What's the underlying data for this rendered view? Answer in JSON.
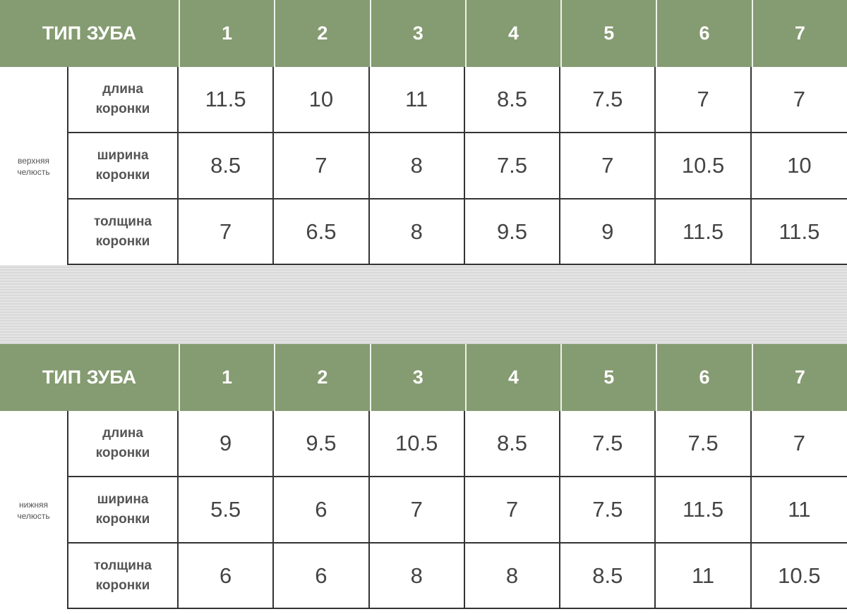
{
  "tables": [
    {
      "header": "ТИП ЗУБА",
      "columns": [
        1,
        2,
        3,
        4,
        5,
        6,
        7
      ],
      "group": "верхняя челюсть",
      "rows": [
        {
          "label": "длина коронки",
          "values": [
            11.5,
            10,
            11,
            8.5,
            7.5,
            7,
            7
          ]
        },
        {
          "label": "ширина коронки",
          "values": [
            8.5,
            7,
            8,
            7.5,
            7,
            10.5,
            10
          ]
        },
        {
          "label": "толщина коронки",
          "values": [
            7,
            6.5,
            8,
            9.5,
            9,
            11.5,
            11.5
          ]
        }
      ]
    },
    {
      "header": "ТИП ЗУБА",
      "columns": [
        1,
        2,
        3,
        4,
        5,
        6,
        7
      ],
      "group": "нижняя челюсть",
      "rows": [
        {
          "label": "длина коронки",
          "values": [
            9,
            9.5,
            10.5,
            8.5,
            7.5,
            7.5,
            7
          ]
        },
        {
          "label": "ширина коронки",
          "values": [
            5.5,
            6,
            7,
            7,
            7.5,
            11.5,
            11
          ]
        },
        {
          "label": "толщина коронки",
          "values": [
            6,
            6,
            8,
            8,
            8.5,
            11,
            10.5
          ]
        }
      ]
    }
  ]
}
